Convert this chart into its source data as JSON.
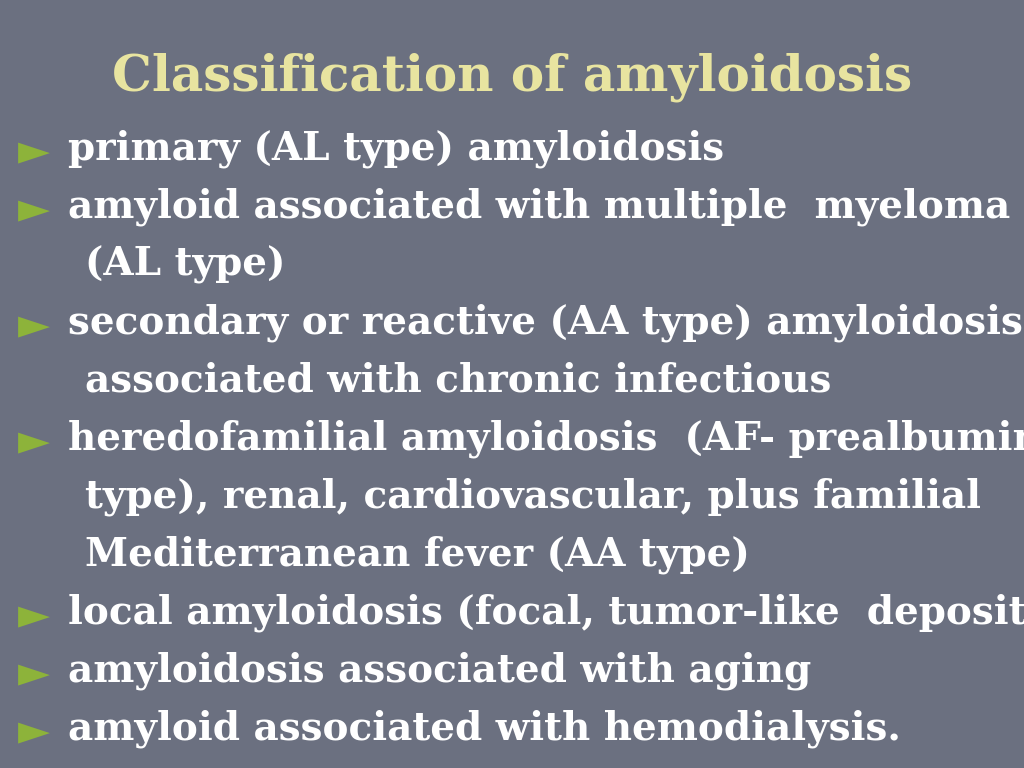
{
  "title": "Classification of amyloidosis",
  "title_color": "#e8e4a0",
  "title_fontsize": 36,
  "background_color": "#6b7080",
  "bullet_color": "#8db33a",
  "text_color": "#ffffff",
  "bullet_char": "►",
  "items": [
    {
      "lines": [
        "primary (AL type) amyloidosis"
      ]
    },
    {
      "lines": [
        "amyloid associated with multiple  myeloma",
        "(AL type)"
      ]
    },
    {
      "lines": [
        "secondary or reactive (AA type) amyloidosis",
        "associated with chronic infectious"
      ]
    },
    {
      "lines": [
        "heredofamilial amyloidosis  (AF- prealbumin",
        "type), renal, cardiovascular, plus familial",
        "Mediterranean fever (AA type)"
      ]
    },
    {
      "lines": [
        "local amyloidosis (focal, tumor-like  deposits )"
      ]
    },
    {
      "lines": [
        "amyloidosis associated with aging"
      ]
    },
    {
      "lines": [
        "amyloid associated with hemodialysis."
      ]
    }
  ],
  "text_fontsize": 28,
  "figsize": [
    10.24,
    7.68
  ],
  "dpi": 100
}
